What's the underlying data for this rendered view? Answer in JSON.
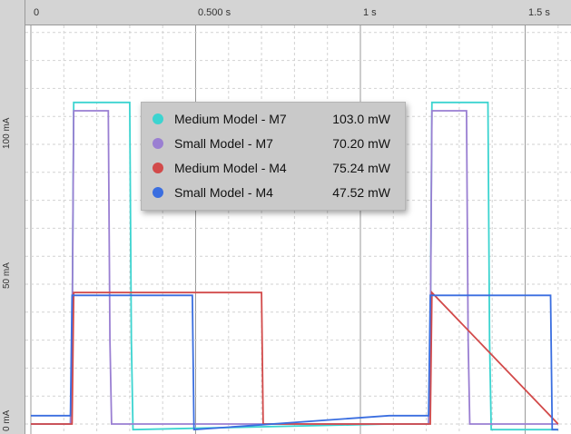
{
  "x_ticks": [
    "0",
    "0.500 s",
    "1 s",
    "1.5 s"
  ],
  "y_ticks": [
    "0 mA",
    "50 mA",
    "100 mA"
  ],
  "legend": [
    {
      "name": "Medium Model - M7",
      "value": "103.0 mW",
      "color": "#3cd4d0"
    },
    {
      "name": "Small Model - M7",
      "value": "70.20 mW",
      "color": "#9a7fd2"
    },
    {
      "name": "Medium Model - M4",
      "value": "75.24 mW",
      "color": "#d24a4a"
    },
    {
      "name": "Small Model - M4",
      "value": "47.52 mW",
      "color": "#3a6ee0"
    }
  ],
  "chart_data": {
    "type": "line",
    "x_unit": "s",
    "y_unit": "mA",
    "xlim": [
      0,
      1.6
    ],
    "ylim": [
      0,
      120
    ],
    "grid": true,
    "legend_position": "center-left",
    "series": [
      {
        "name": "Medium Model - M7",
        "color": "#3cd4d0",
        "x": [
          0,
          0.12,
          0.125,
          0.13,
          0.3,
          0.305,
          0.31,
          1.6
        ],
        "y": [
          0,
          0,
          30,
          115,
          115,
          30,
          -2,
          -2
        ]
      },
      {
        "name": "Small Model - M7",
        "color": "#9a7fd2",
        "x": [
          0,
          0.12,
          0.125,
          0.13,
          0.235,
          0.24,
          0.245,
          1.6
        ],
        "y": [
          0,
          0,
          30,
          112,
          112,
          30,
          0,
          0
        ]
      },
      {
        "name": "Medium Model - M4",
        "color": "#d24a4a",
        "x": [
          0,
          0.125,
          0.13,
          0.7,
          0.705,
          1.6
        ],
        "y": [
          0,
          0,
          47,
          47,
          0,
          0
        ]
      },
      {
        "name": "Small Model - M4",
        "color": "#3a6ee0",
        "x": [
          0,
          0.12,
          0.125,
          0.49,
          0.495,
          1.6
        ],
        "y": [
          3,
          3,
          46,
          46,
          -2,
          -2
        ]
      }
    ]
  }
}
